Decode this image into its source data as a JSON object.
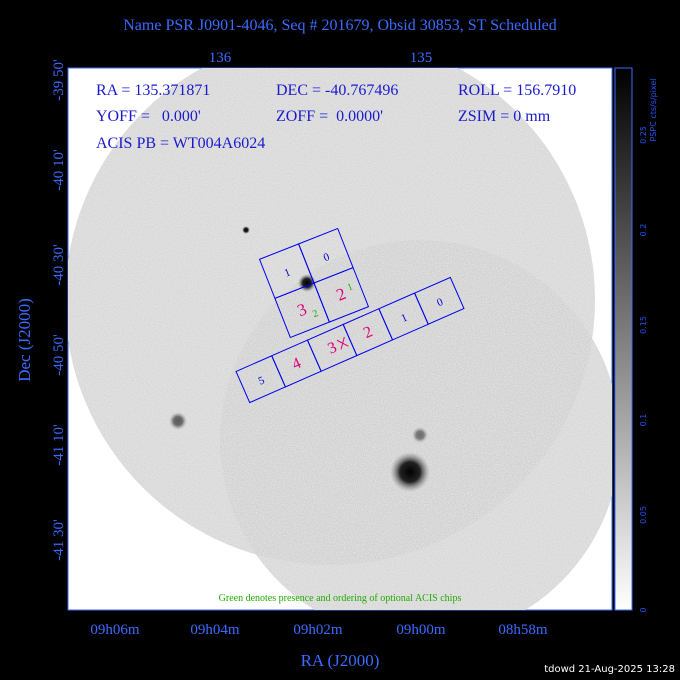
{
  "title": "Name PSR J0901-4046, Seq # 201679, Obsid 30853, ST Scheduled",
  "top_axis": [
    "136",
    "135"
  ],
  "dec_ticks": [
    "-39 50'",
    "-40 10'",
    "-40 30'",
    "-40 50'",
    "-41 10'",
    "-41 30'"
  ],
  "dec_label": "Dec (J2000)",
  "ra_ticks": [
    "09h06m",
    "09h04m",
    "09h02m",
    "09h00m",
    "08h58m"
  ],
  "ra_label": "RA (J2000)",
  "info": [
    "RA = 135.371871",
    "DEC = -40.767496",
    "ROLL = 156.7910",
    "YOFF =   0.000'",
    "ZOFF =  0.0000'",
    "ZSIM = 0 mm",
    "ACIS PB = WT004A6024"
  ],
  "i_chips": [
    "1",
    "0",
    "3",
    "2"
  ],
  "optional_chips": [
    "2",
    "1"
  ],
  "s_chips": [
    "5",
    "4",
    "3",
    "2",
    "1",
    "0"
  ],
  "note": "Green denotes presence and ordering of optional ACIS chips",
  "colorbar": {
    "label": "PSPC cts/s/pixel",
    "ticks": [
      "0",
      "0.05",
      "0.1",
      "0.15",
      "0.2",
      "0.25"
    ]
  },
  "footer": "tdowd 21-Aug-2025 13:28"
}
